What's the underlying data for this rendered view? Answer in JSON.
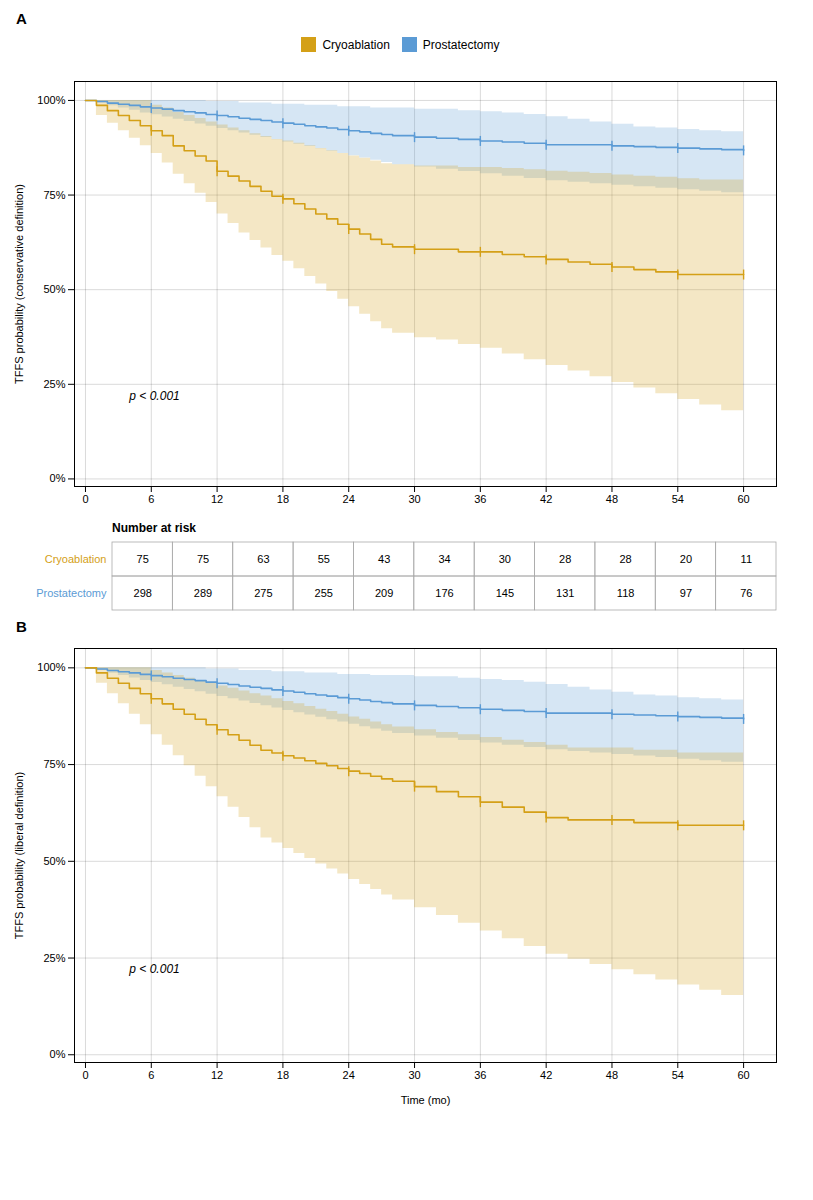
{
  "chart_data": [
    {
      "type": "line",
      "title": "A",
      "x": [
        0,
        1,
        2,
        3,
        4,
        5,
        6,
        7,
        8,
        9,
        10,
        11,
        12,
        13,
        14,
        15,
        16,
        17,
        18,
        19,
        20,
        21,
        22,
        23,
        24,
        25,
        26,
        27,
        28,
        30,
        32,
        34,
        36,
        38,
        40,
        42,
        44,
        46,
        48,
        50,
        52,
        54,
        56,
        58,
        60
      ],
      "series": [
        {
          "name": "Cryoablation",
          "color": "#D4A017",
          "values": [
            100,
            98.7,
            97.3,
            96,
            94.7,
            93.3,
            92,
            90.7,
            88,
            86.7,
            85.3,
            84,
            81.3,
            80,
            78.7,
            77.3,
            76,
            74.7,
            74,
            72.7,
            71.3,
            70,
            68.7,
            67.3,
            66,
            64.7,
            63.3,
            62,
            61.3,
            60.7,
            60.7,
            60,
            60,
            59.3,
            58.7,
            58,
            57.3,
            56.7,
            56,
            55.3,
            54.7,
            54,
            54,
            54,
            54
          ],
          "ci_low": [
            100,
            96,
            94,
            92,
            90,
            88,
            86,
            83.5,
            80.5,
            78,
            75.5,
            73,
            70,
            67.5,
            65,
            63,
            61,
            59,
            57.5,
            55.5,
            53.5,
            51.5,
            49.5,
            47.5,
            45.5,
            43.5,
            41.5,
            39.7,
            38.5,
            37.3,
            36.7,
            35.5,
            34.5,
            33,
            31.5,
            30,
            28.5,
            27,
            25.5,
            24,
            22.5,
            21,
            19.5,
            18,
            16.5
          ],
          "ci_high": [
            100,
            100,
            100,
            100,
            100,
            100,
            98.7,
            98,
            96.8,
            96,
            95.2,
            94.3,
            93.5,
            92.7,
            92,
            91.2,
            90.5,
            89.7,
            89.3,
            88.7,
            88,
            87.3,
            86.7,
            86,
            85.3,
            84.7,
            84,
            83.3,
            83,
            82.7,
            82.7,
            82.3,
            82.3,
            82,
            81.7,
            81.3,
            81,
            80.7,
            80.3,
            80,
            79.7,
            79.3,
            79,
            79,
            79
          ]
        },
        {
          "name": "Prostatectomy",
          "color": "#5B9BD5",
          "values": [
            100,
            99.7,
            99.3,
            99,
            98.7,
            98.3,
            98,
            97.7,
            97.3,
            97,
            96.7,
            96.3,
            96,
            95.7,
            95.3,
            95,
            94.7,
            94.3,
            94,
            93.7,
            93.3,
            93,
            92.7,
            92.3,
            92,
            91.7,
            91.3,
            91,
            90.7,
            90.3,
            90,
            89.7,
            89.3,
            89,
            88.7,
            88.3,
            88.3,
            88.3,
            88,
            87.8,
            87.6,
            87.4,
            87.2,
            87,
            86.8
          ],
          "ci_low": [
            100,
            99.3,
            98.6,
            98,
            97.4,
            96.7,
            96.2,
            95.6,
            95,
            94.4,
            93.8,
            93.2,
            92.6,
            92,
            91.4,
            90.8,
            90.2,
            89.6,
            89,
            88.4,
            87.8,
            87.2,
            86.6,
            86,
            85.4,
            84.8,
            84.2,
            83.6,
            83,
            82.4,
            81.8,
            81.2,
            80.6,
            80,
            79.4,
            78.8,
            78.4,
            78,
            77.6,
            77.2,
            76.8,
            76.4,
            76,
            75.6,
            75.2
          ],
          "ci_high": [
            100,
            100,
            100,
            100,
            100,
            100,
            100,
            100,
            100,
            100,
            100,
            99.7,
            99.7,
            99.7,
            99.3,
            99.3,
            99.3,
            99,
            99,
            99,
            98.7,
            98.7,
            98.7,
            98.3,
            98.3,
            98.3,
            98,
            98,
            98,
            97.7,
            97.7,
            97.3,
            97,
            96.7,
            96.3,
            95.7,
            95,
            94.3,
            93.7,
            93,
            92.7,
            92.3,
            92,
            91.7,
            91.3
          ]
        }
      ],
      "censored_at": [
        6,
        12,
        18,
        24,
        30,
        36,
        42,
        48,
        54,
        60
      ],
      "xlim": [
        -1,
        63
      ],
      "ylim": [
        -2,
        105
      ],
      "xticks": [
        0,
        6,
        12,
        18,
        24,
        30,
        36,
        42,
        48,
        54,
        60
      ],
      "yticks": [
        {
          "value": 0,
          "label": "0%"
        },
        {
          "value": 25,
          "label": "25%"
        },
        {
          "value": 50,
          "label": "50%"
        },
        {
          "value": 75,
          "label": "75%"
        },
        {
          "value": 100,
          "label": "100%"
        }
      ],
      "y_label": "TFFS probability (conservative definition)",
      "annotations": [
        {
          "x": 4,
          "y": 22,
          "text": "p < 0.001"
        }
      ],
      "grid": true,
      "legend": "top"
    },
    {
      "type": "table",
      "title": "Number at risk",
      "series": [
        {
          "name": "Cryoablation",
          "color": "#D4A017",
          "values": [
            75,
            75,
            63,
            55,
            43,
            34,
            30,
            28,
            28,
            20,
            11
          ]
        },
        {
          "name": "Prostatectomy",
          "color": "#5B9BD5",
          "values": [
            298,
            289,
            275,
            255,
            209,
            176,
            145,
            131,
            118,
            97,
            76
          ]
        }
      ]
    },
    {
      "type": "line",
      "title": "B",
      "x": [
        0,
        1,
        2,
        3,
        4,
        5,
        6,
        7,
        8,
        9,
        10,
        11,
        12,
        13,
        14,
        15,
        16,
        17,
        18,
        19,
        20,
        21,
        22,
        23,
        24,
        25,
        26,
        27,
        28,
        30,
        32,
        34,
        36,
        38,
        40,
        42,
        44,
        46,
        48,
        50,
        52,
        54,
        56,
        58,
        60
      ],
      "series": [
        {
          "name": "Cryoablation",
          "color": "#D4A017",
          "values": [
            100,
            98.7,
            97.3,
            96,
            94.7,
            93.3,
            92,
            90.7,
            89.3,
            88,
            86.7,
            85.3,
            84,
            82.7,
            81.3,
            80,
            78.7,
            78,
            77.3,
            76.7,
            76,
            75.3,
            74.7,
            74,
            73.3,
            72.7,
            72,
            71.3,
            70.7,
            69.3,
            68,
            66.7,
            65.3,
            64,
            62.7,
            61.3,
            60.7,
            60.7,
            60.7,
            60,
            60,
            59.3,
            59.3,
            59.3,
            59.3
          ],
          "ci_low": [
            100,
            96,
            93.3,
            90.7,
            88,
            85.3,
            82.7,
            80,
            77.3,
            74.7,
            72,
            69.3,
            66.7,
            64,
            61.3,
            58.7,
            56,
            54.7,
            53.3,
            52,
            50.7,
            49.3,
            48,
            46.7,
            45.3,
            44,
            42.7,
            41.3,
            40,
            38,
            36,
            34,
            32,
            30,
            28,
            26,
            24.7,
            23.3,
            22,
            20.7,
            19.3,
            18,
            16.7,
            15.3,
            14
          ],
          "ci_high": [
            100,
            100,
            100,
            100,
            100,
            100,
            99.3,
            98.7,
            98,
            97.3,
            96.7,
            96,
            95.3,
            94.7,
            94,
            93.3,
            92.7,
            92,
            91.3,
            90.7,
            90,
            89.3,
            88.7,
            88,
            87.3,
            86.7,
            86,
            85.3,
            84.7,
            84,
            83.3,
            82.7,
            82,
            81.3,
            80.7,
            80,
            79.3,
            79.3,
            79.3,
            78.7,
            78.7,
            78,
            78,
            78,
            78
          ]
        },
        {
          "name": "Prostatectomy",
          "color": "#5B9BD5",
          "values": [
            100,
            99.7,
            99.3,
            99,
            98.7,
            98.3,
            98,
            97.7,
            97.3,
            97,
            96.7,
            96.3,
            96,
            95.7,
            95.3,
            95,
            94.7,
            94.3,
            94,
            93.7,
            93.3,
            93,
            92.7,
            92.3,
            92,
            91.7,
            91.3,
            91,
            90.7,
            90.3,
            90,
            89.7,
            89.3,
            89,
            88.7,
            88.3,
            88.3,
            88.3,
            88,
            87.8,
            87.6,
            87.4,
            87.2,
            87,
            86.8
          ],
          "ci_low": [
            100,
            99.3,
            98.6,
            98,
            97.4,
            96.7,
            96.2,
            95.6,
            95,
            94.4,
            93.8,
            93.2,
            92.6,
            92,
            91.4,
            90.8,
            90.2,
            89.6,
            89,
            88.4,
            87.8,
            87.2,
            86.6,
            86,
            85.4,
            84.8,
            84.2,
            83.6,
            83,
            82.4,
            81.8,
            81.2,
            80.6,
            80,
            79.4,
            78.8,
            78.4,
            78,
            77.6,
            77.2,
            76.8,
            76.4,
            76,
            75.6,
            75.2
          ],
          "ci_high": [
            100,
            100,
            100,
            100,
            100,
            100,
            100,
            100,
            100,
            100,
            100,
            99.7,
            99.7,
            99.7,
            99.3,
            99.3,
            99.3,
            99,
            99,
            99,
            98.7,
            98.7,
            98.7,
            98.3,
            98.3,
            98.3,
            98,
            98,
            98,
            97.7,
            97.7,
            97.3,
            97,
            96.7,
            96.3,
            95.7,
            95,
            94.3,
            93.7,
            93,
            92.7,
            92.3,
            92,
            91.7,
            91.3
          ]
        }
      ],
      "censored_at": [
        6,
        12,
        18,
        24,
        30,
        36,
        42,
        48,
        54,
        60
      ],
      "xlim": [
        -1,
        63
      ],
      "ylim": [
        -2,
        105
      ],
      "xticks": [
        0,
        6,
        12,
        18,
        24,
        30,
        36,
        42,
        48,
        54,
        60
      ],
      "yticks": [
        {
          "value": 0,
          "label": "0%"
        },
        {
          "value": 25,
          "label": "25%"
        },
        {
          "value": 50,
          "label": "50%"
        },
        {
          "value": 75,
          "label": "75%"
        },
        {
          "value": 100,
          "label": "100%"
        }
      ],
      "x_label": "Time (mo)",
      "y_label": "TFFS probability (liberal definition)",
      "annotations": [
        {
          "x": 4,
          "y": 22,
          "text": "p < 0.001"
        }
      ],
      "grid": true
    }
  ]
}
